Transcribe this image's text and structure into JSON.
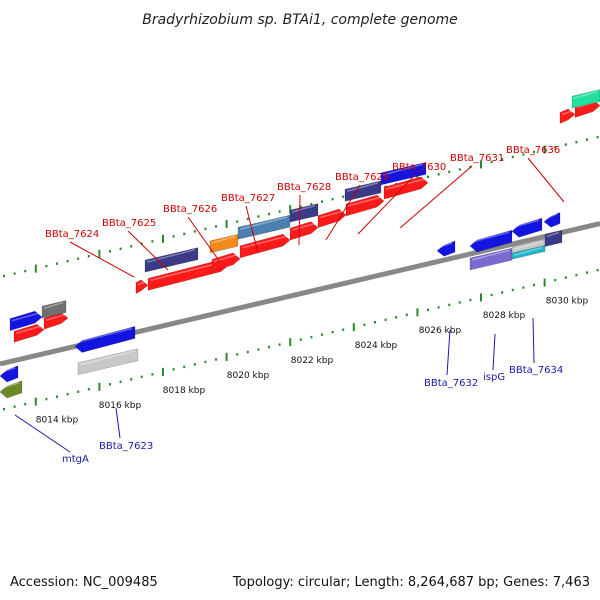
{
  "title": "Bradyrhizobium sp. BTAi1, complete genome",
  "footer": {
    "accession": "Accession: NC_009485",
    "topology": "Topology: circular; Length: 8,264,687 bp; Genes: 7,463"
  },
  "ruler": {
    "ticks": [
      "8014 kbp",
      "8016 kbp",
      "8018 kbp",
      "8020 kbp",
      "8022 kbp",
      "8024 kbp",
      "8026 kbp",
      "8028 kbp",
      "8030 kbp"
    ]
  },
  "top_labels": [
    "BBta_7624",
    "BBta_7625",
    "BBta_7626",
    "BBta_7627",
    "BBta_7628",
    "BBta_7629",
    "BBta_7630",
    "BBta_7631",
    "BBta_7636"
  ],
  "bottom_labels": [
    "mtgA",
    "BBta_7623",
    "BBta_7632",
    "ispG",
    "BBta_7634"
  ],
  "colors": {
    "backbone": "#888888",
    "ruler": "#2a8a2a",
    "cds": "#ff1a1a",
    "gene_red_labels": "#cc0000",
    "gene_blue_labels": "#1a1aa8",
    "blue": "#1414e0",
    "navy": "#3a3a88",
    "steel": "#4a7fb0",
    "orange": "#f08a1a",
    "gray": "#707070",
    "lightgray": "#c8c8c8",
    "lavender": "#7a6ad0",
    "cyan": "#20b8c8",
    "olive": "#6a8a2a",
    "teal": "#20e0a0"
  }
}
